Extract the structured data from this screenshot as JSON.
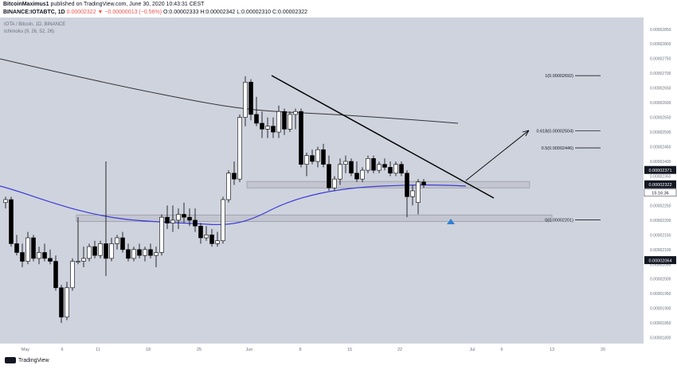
{
  "header": {
    "author": "BitcoinMaximus1",
    "published": "published on TradingView.com, June 30, 2020 10:43:31 CEST",
    "symbol": "BINANCE:IOTABTC, 1D",
    "ohlc_label": "0.00002322 ▼ −0.00000013 (−0.56%)",
    "o": "O:0.00002333",
    "h": "H:0.00002342",
    "l": "L:0.00002310",
    "c": "C:0.00002322"
  },
  "legend": {
    "instrument": "IOTA / Bitcoin, 1D, BINANCE",
    "indicator": "Ichimoku (9, 26, 52, 26)"
  },
  "footer": {
    "brand": "TradingView"
  },
  "colors": {
    "background": "#cfd3de",
    "candle_up": "#ffffff",
    "candle_down": "#000000",
    "ma_long": "#333333",
    "ma_short": "#3b3bd6",
    "zone": "#c3c6d0",
    "triangle": "#2f7fd6"
  },
  "chart_data": {
    "type": "candlestick",
    "x_ticks": [
      "May",
      "6",
      "11",
      "18",
      "25",
      "Jun",
      "8",
      "15",
      "22",
      "Jul",
      "6",
      "13",
      "20"
    ],
    "y_ticks": [
      "0.00002850",
      "0.00002800",
      "0.00002750",
      "0.00002700",
      "0.00002650",
      "0.00002600",
      "0.00002550",
      "0.00002500",
      "0.00002450",
      "0.00002400",
      "0.00002350",
      "0.00002300",
      "0.00002250",
      "0.00002200",
      "0.00002150",
      "0.00002100",
      "0.00002050",
      "0.00002000",
      "0.00001950",
      "0.00001900",
      "0.00001850",
      "0.00001800"
    ],
    "ylim": [
      1.78e-05,
      2.89e-05
    ],
    "price_labels": [
      {
        "value": 2.371e-05,
        "text": "0.00002371",
        "style": "dark"
      },
      {
        "value": 2.322e-05,
        "text": "0.00002322",
        "style": "dark"
      },
      {
        "value": 2.064e-05,
        "text": "0.00002064",
        "style": "dark"
      }
    ],
    "countdown": "15:16:36",
    "fib_levels": [
      {
        "value": 2.692e-05,
        "text": "1(0.00002692)"
      },
      {
        "value": 2.504e-05,
        "text": "0.618(0.00002504)"
      },
      {
        "value": 2.446e-05,
        "text": "0.5(0.00002446)"
      },
      {
        "value": 2.201e-05,
        "text": "0(0.00002201)"
      }
    ],
    "zones": [
      {
        "low": 2.31e-05,
        "high": 2.332e-05
      },
      {
        "low": 2.195e-05,
        "high": 2.218e-05
      }
    ],
    "candles": [
      [
        2.26e-05,
        2.28e-05,
        2.24e-05,
        2.27e-05
      ],
      [
        2.27e-05,
        2.28e-05,
        2.11e-05,
        2.12e-05
      ],
      [
        2.12e-05,
        2.15e-05,
        2.08e-05,
        2.09e-05
      ],
      [
        2.09e-05,
        2.12e-05,
        2.04e-05,
        2.06e-05
      ],
      [
        2.06e-05,
        2.16e-05,
        2.05e-05,
        2.14e-05
      ],
      [
        2.14e-05,
        2.15e-05,
        2.06e-05,
        2.07e-05
      ],
      [
        2.07e-05,
        2.11e-05,
        2.05e-05,
        2.09e-05
      ],
      [
        2.09e-05,
        2.12e-05,
        2.06e-05,
        2.07e-05
      ],
      [
        2.07e-05,
        2.1e-05,
        2.05e-05,
        2.06e-05
      ],
      [
        2.06e-05,
        2.08e-05,
        1.96e-05,
        1.97e-05
      ],
      [
        1.97e-05,
        1.98e-05,
        1.85e-05,
        1.87e-05
      ],
      [
        1.87e-05,
        1.99e-05,
        1.86e-05,
        1.97e-05
      ],
      [
        1.97e-05,
        2.07e-05,
        1.96e-05,
        2.06e-05
      ],
      [
        2.06e-05,
        2.21e-05,
        2.05e-05,
        2.06e-05
      ],
      [
        2.06e-05,
        2.11e-05,
        2.04e-05,
        2.07e-05
      ],
      [
        2.07e-05,
        2.12e-05,
        2.06e-05,
        2.11e-05
      ],
      [
        2.11e-05,
        2.13e-05,
        2.07e-05,
        2.08e-05
      ],
      [
        2.08e-05,
        2.13e-05,
        2.07e-05,
        2.12e-05
      ],
      [
        2.12e-05,
        2.4e-05,
        2.01e-05,
        2.07e-05
      ],
      [
        2.07e-05,
        2.14e-05,
        2.06e-05,
        2.12e-05
      ],
      [
        2.12e-05,
        2.15e-05,
        2.1e-05,
        2.14e-05
      ],
      [
        2.14e-05,
        2.16e-05,
        2.09e-05,
        2.1e-05
      ],
      [
        2.1e-05,
        2.12e-05,
        2.06e-05,
        2.07e-05
      ],
      [
        2.07e-05,
        2.11e-05,
        2.06e-05,
        2.1e-05
      ],
      [
        2.1e-05,
        2.12e-05,
        2.07e-05,
        2.08e-05
      ],
      [
        2.08e-05,
        2.11e-05,
        2.06e-05,
        2.1e-05
      ],
      [
        2.1e-05,
        2.12e-05,
        2.07e-05,
        2.08e-05
      ],
      [
        2.08e-05,
        2.11e-05,
        2.04e-05,
        2.09e-05
      ],
      [
        2.09e-05,
        2.22e-05,
        2.08e-05,
        2.21e-05
      ],
      [
        2.21e-05,
        2.25e-05,
        2.17e-05,
        2.19e-05
      ],
      [
        2.19e-05,
        2.25e-05,
        2.16e-05,
        2.2e-05
      ],
      [
        2.2e-05,
        2.24e-05,
        2.17e-05,
        2.22e-05
      ],
      [
        2.22e-05,
        2.26e-05,
        2.19e-05,
        2.21e-05
      ],
      [
        2.21e-05,
        2.24e-05,
        2.18e-05,
        2.2e-05
      ],
      [
        2.2e-05,
        2.24e-05,
        2.16e-05,
        2.18e-05
      ],
      [
        2.18e-05,
        2.19e-05,
        2.12e-05,
        2.14e-05
      ],
      [
        2.14e-05,
        2.18e-05,
        2.13e-05,
        2.15e-05
      ],
      [
        2.15e-05,
        2.17e-05,
        2.11e-05,
        2.12e-05
      ],
      [
        2.12e-05,
        2.16e-05,
        2.11e-05,
        2.13e-05
      ],
      [
        2.13e-05,
        2.28e-05,
        2.12e-05,
        2.27e-05
      ],
      [
        2.27e-05,
        2.37e-05,
        2.26e-05,
        2.36e-05
      ],
      [
        2.36e-05,
        2.4e-05,
        2.32e-05,
        2.34e-05
      ],
      [
        2.34e-05,
        2.56e-05,
        2.33e-05,
        2.55e-05
      ],
      [
        2.55e-05,
        2.69e-05,
        2.52e-05,
        2.67e-05
      ],
      [
        2.67e-05,
        2.68e-05,
        2.54e-05,
        2.56e-05
      ],
      [
        2.56e-05,
        2.62e-05,
        2.52e-05,
        2.53e-05
      ],
      [
        2.53e-05,
        2.57e-05,
        2.48e-05,
        2.51e-05
      ],
      [
        2.51e-05,
        2.55e-05,
        2.48e-05,
        2.52e-05
      ],
      [
        2.52e-05,
        2.55e-05,
        2.48e-05,
        2.5e-05
      ],
      [
        2.5e-05,
        2.59e-05,
        2.48e-05,
        2.57e-05
      ],
      [
        2.57e-05,
        2.58e-05,
        2.49e-05,
        2.51e-05
      ],
      [
        2.51e-05,
        2.57e-05,
        2.5e-05,
        2.56e-05
      ],
      [
        2.56e-05,
        2.58e-05,
        2.51e-05,
        2.57e-05
      ],
      [
        2.57e-05,
        2.58e-05,
        2.38e-05,
        2.39e-05
      ],
      [
        2.39e-05,
        2.43e-05,
        2.35e-05,
        2.42e-05
      ],
      [
        2.42e-05,
        2.44e-05,
        2.39e-05,
        2.4e-05
      ],
      [
        2.4e-05,
        2.45e-05,
        2.38e-05,
        2.44e-05
      ],
      [
        2.44e-05,
        2.46e-05,
        2.38e-05,
        2.39e-05
      ],
      [
        2.39e-05,
        2.42e-05,
        2.3e-05,
        2.31e-05
      ],
      [
        2.31e-05,
        2.35e-05,
        2.3e-05,
        2.34e-05
      ],
      [
        2.34e-05,
        2.41e-05,
        2.32e-05,
        2.39e-05
      ],
      [
        2.39e-05,
        2.42e-05,
        2.36e-05,
        2.4e-05
      ],
      [
        2.4e-05,
        2.41e-05,
        2.35e-05,
        2.36e-05
      ],
      [
        2.36e-05,
        2.4e-05,
        2.33e-05,
        2.34e-05
      ],
      [
        2.34e-05,
        2.38e-05,
        2.33e-05,
        2.37e-05
      ],
      [
        2.37e-05,
        2.42e-05,
        2.36e-05,
        2.41e-05
      ],
      [
        2.41e-05,
        2.42e-05,
        2.36e-05,
        2.37e-05
      ],
      [
        2.37e-05,
        2.4e-05,
        2.36e-05,
        2.39e-05
      ],
      [
        2.39e-05,
        2.41e-05,
        2.37e-05,
        2.38e-05
      ],
      [
        2.38e-05,
        2.4e-05,
        2.35e-05,
        2.36e-05
      ],
      [
        2.36e-05,
        2.4e-05,
        2.35e-05,
        2.39e-05
      ],
      [
        2.39e-05,
        2.4e-05,
        2.35e-05,
        2.36e-05
      ],
      [
        2.36e-05,
        2.37e-05,
        2.21e-05,
        2.28e-05
      ],
      [
        2.28e-05,
        2.32e-05,
        2.25e-05,
        2.3e-05
      ],
      [
        2.26e-05,
        2.34e-05,
        2.22e-05,
        2.33e-05
      ],
      [
        2.33e-05,
        2.34e-05,
        2.31e-05,
        2.32e-05
      ]
    ]
  }
}
